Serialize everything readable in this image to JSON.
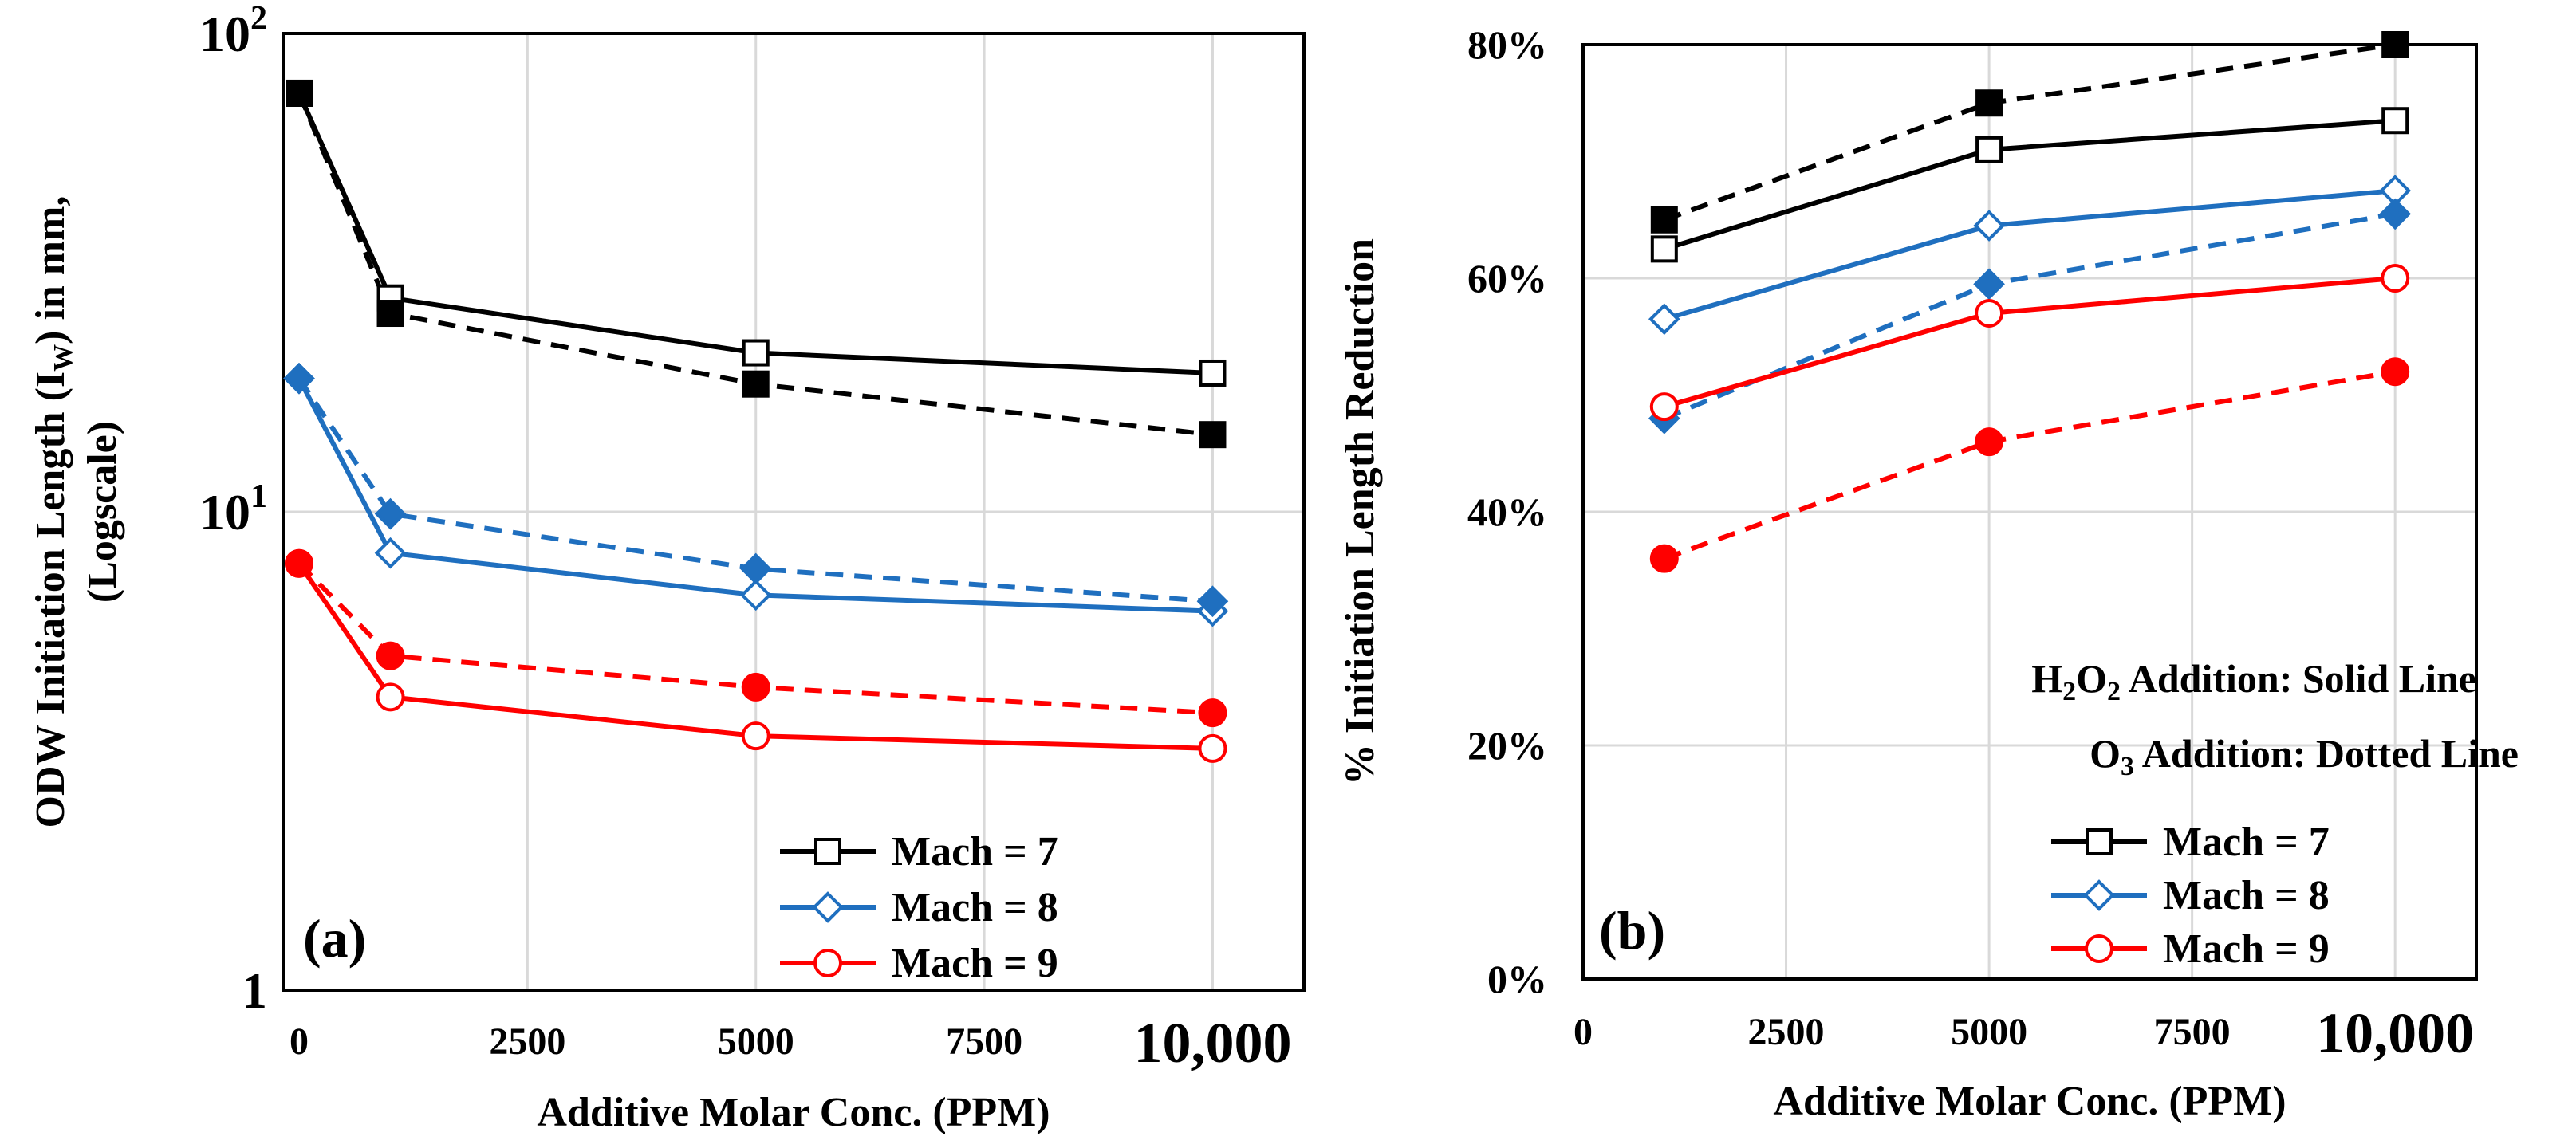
{
  "chart_data": [
    {
      "type": "line",
      "panel_label": "(a)",
      "xlabel": "Additive Molar Conc. (PPM)",
      "ylabel_line1": "ODW Initiation Length (I",
      "ylabel_sub": "W",
      "ylabel_line1_end": ") in mm,",
      "ylabel_line2": "(Logscale)",
      "yscale": "log",
      "xlim": [
        0,
        11000
      ],
      "ylim": [
        1,
        100
      ],
      "x_ticks": [
        "0",
        "2500",
        "5000",
        "7500",
        "10,000"
      ],
      "x_tick_values": [
        0,
        2500,
        5000,
        7500,
        10000
      ],
      "y_ticks_base": [
        "10",
        "10",
        "1"
      ],
      "y_ticks_exp": [
        "2",
        "1",
        ""
      ],
      "y_tick_values": [
        100,
        10,
        1
      ],
      "grid": true,
      "legend_position": "bottom-right",
      "legend": [
        "Mach = 7",
        "Mach = 8",
        "Mach = 9"
      ],
      "series": [
        {
          "name": "Mach = 7",
          "additive": "H2O2",
          "style": "solid",
          "marker": "square-open",
          "color": "#000000",
          "x": [
            0,
            1000,
            5000,
            10000
          ],
          "y": [
            75,
            28,
            21.5,
            19.5
          ]
        },
        {
          "name": "Mach = 7",
          "additive": "O3",
          "style": "dashed",
          "marker": "square-filled",
          "color": "#000000",
          "x": [
            0,
            1000,
            5000,
            10000
          ],
          "y": [
            75,
            26,
            18.5,
            14.5
          ]
        },
        {
          "name": "Mach = 8",
          "additive": "H2O2",
          "style": "solid",
          "marker": "diamond-open",
          "color": "#1f6fbf",
          "x": [
            0,
            1000,
            5000,
            10000
          ],
          "y": [
            19,
            8.2,
            6.7,
            6.2
          ]
        },
        {
          "name": "Mach = 8",
          "additive": "O3",
          "style": "dashed",
          "marker": "diamond-filled",
          "color": "#1f6fbf",
          "x": [
            0,
            1000,
            5000,
            10000
          ],
          "y": [
            19,
            9.9,
            7.6,
            6.5
          ]
        },
        {
          "name": "Mach = 9",
          "additive": "H2O2",
          "style": "solid",
          "marker": "circle-open",
          "color": "#ff0000",
          "x": [
            0,
            1000,
            5000,
            10000
          ],
          "y": [
            7.8,
            4.1,
            3.4,
            3.2
          ]
        },
        {
          "name": "Mach = 9",
          "additive": "O3",
          "style": "dashed",
          "marker": "circle-filled",
          "color": "#ff0000",
          "x": [
            0,
            1000,
            5000,
            10000
          ],
          "y": [
            7.8,
            5.0,
            4.3,
            3.8
          ]
        }
      ]
    },
    {
      "type": "line",
      "panel_label": "(b)",
      "xlabel": "Additive Molar Conc. (PPM)",
      "ylabel": "% Initiation Length Reduction",
      "xlim": [
        0,
        11000
      ],
      "ylim": [
        0,
        80
      ],
      "x_ticks": [
        "0",
        "2500",
        "5000",
        "7500",
        "10,000"
      ],
      "x_tick_values": [
        0,
        2500,
        5000,
        7500,
        10000
      ],
      "y_ticks": [
        "0%",
        "20%",
        "40%",
        "60%",
        "80%"
      ],
      "y_tick_values": [
        0,
        20,
        40,
        60,
        80
      ],
      "grid": true,
      "legend_position": "bottom-right",
      "legend": [
        "Mach = 7",
        "Mach = 8",
        "Mach = 9"
      ],
      "annotation_1": {
        "part1": "H",
        "sub1": "2",
        "part2": "O",
        "sub2": "2",
        "part3": " Addition: Solid Line"
      },
      "annotation_2": {
        "part1": "O",
        "sub1": "3",
        "part2": " Addition: Dotted Line"
      },
      "series": [
        {
          "name": "Mach = 7",
          "additive": "H2O2",
          "style": "solid",
          "marker": "square-open",
          "color": "#000000",
          "x": [
            1000,
            5000,
            10000
          ],
          "y": [
            62.5,
            71,
            73.5
          ]
        },
        {
          "name": "Mach = 7",
          "additive": "O3",
          "style": "dashed",
          "marker": "square-filled",
          "color": "#000000",
          "x": [
            1000,
            5000,
            10000
          ],
          "y": [
            65,
            75,
            80
          ]
        },
        {
          "name": "Mach = 8",
          "additive": "H2O2",
          "style": "solid",
          "marker": "diamond-open",
          "color": "#1f6fbf",
          "x": [
            1000,
            5000,
            10000
          ],
          "y": [
            56.5,
            64.5,
            67.5
          ]
        },
        {
          "name": "Mach = 8",
          "additive": "O3",
          "style": "dashed",
          "marker": "diamond-filled",
          "color": "#1f6fbf",
          "x": [
            1000,
            5000,
            10000
          ],
          "y": [
            48,
            59.5,
            65.5
          ]
        },
        {
          "name": "Mach = 9",
          "additive": "H2O2",
          "style": "solid",
          "marker": "circle-open",
          "color": "#ff0000",
          "x": [
            1000,
            5000,
            10000
          ],
          "y": [
            49,
            57,
            60
          ]
        },
        {
          "name": "Mach = 9",
          "additive": "O3",
          "style": "dashed",
          "marker": "circle-filled",
          "color": "#ff0000",
          "x": [
            1000,
            5000,
            10000
          ],
          "y": [
            36,
            46,
            52
          ]
        }
      ]
    }
  ]
}
